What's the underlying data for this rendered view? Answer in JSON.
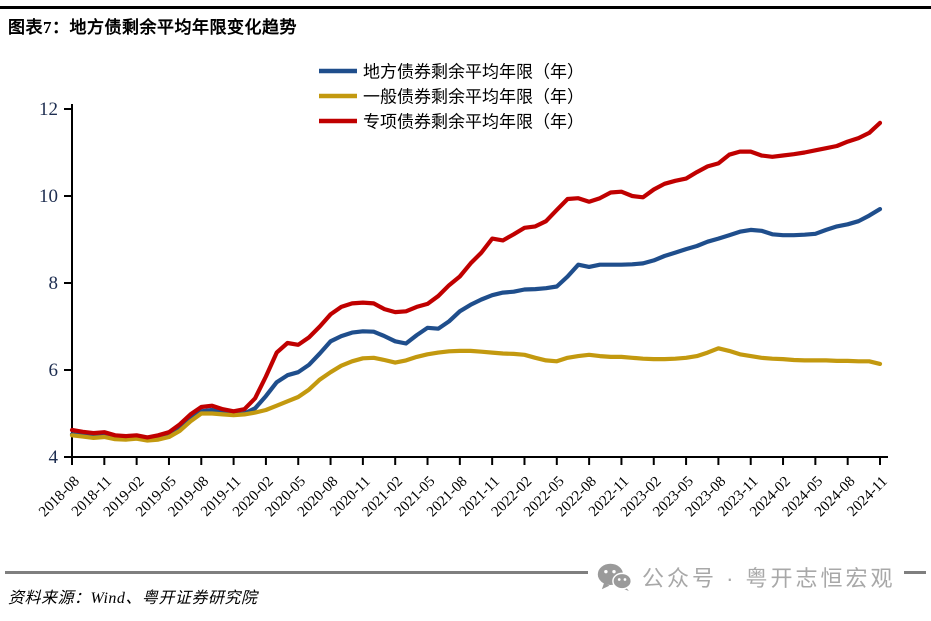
{
  "header": {
    "title": "图表7：地方债剩余平均年限变化趋势"
  },
  "footer": {
    "source": "资料来源：Wind、粤开证券研究院",
    "watermark": "公众号 · 粤开志恒宏观",
    "watermark_icon": "wechat-icon"
  },
  "colors": {
    "axis": "#000000",
    "y_tick_label": "#1d2d50",
    "x_tick_label": "#000000",
    "divider_gray": "#7f7f7f",
    "watermark_gray": "#a8a8a8"
  },
  "chart_data": {
    "type": "line",
    "title": "地方债剩余平均年限变化趋势",
    "xlabel": "",
    "ylabel": "",
    "ylim": [
      4,
      12
    ],
    "y_ticks": [
      4,
      6,
      8,
      10,
      12
    ],
    "grid": false,
    "legend_position": "top-center",
    "x_unit": "month",
    "x_start": "2018-08",
    "x_end": "2024-11",
    "x_tick_every_n_points": 3,
    "x_tick_labels": [
      "2018-08",
      "2018-11",
      "2019-02",
      "2019-05",
      "2019-08",
      "2019-11",
      "2020-02",
      "2020-05",
      "2020-08",
      "2020-11",
      "2021-02",
      "2021-05",
      "2021-08",
      "2021-11",
      "2022-02",
      "2022-05",
      "2022-08",
      "2022-11",
      "2023-02",
      "2023-05",
      "2023-08",
      "2023-11",
      "2024-02",
      "2024-05",
      "2024-08",
      "2024-11"
    ],
    "series": [
      {
        "name": "地方债券剩余平均年限（年）",
        "color": "#1F4E8C",
        "values": [
          4.52,
          4.5,
          4.47,
          4.5,
          4.45,
          4.45,
          4.47,
          4.42,
          4.45,
          4.52,
          4.68,
          4.88,
          5.05,
          5.08,
          5.02,
          4.97,
          5.0,
          5.12,
          5.4,
          5.72,
          5.88,
          5.95,
          6.12,
          6.38,
          6.66,
          6.78,
          6.86,
          6.89,
          6.88,
          6.78,
          6.66,
          6.61,
          6.8,
          6.97,
          6.95,
          7.12,
          7.35,
          7.5,
          7.62,
          7.72,
          7.78,
          7.8,
          7.85,
          7.86,
          7.88,
          7.92,
          8.15,
          8.42,
          8.37,
          8.42,
          8.42,
          8.42,
          8.43,
          8.45,
          8.52,
          8.62,
          8.7,
          8.78,
          8.85,
          8.95,
          9.02,
          9.1,
          9.18,
          9.22,
          9.2,
          9.12,
          9.1,
          9.1,
          9.11,
          9.13,
          9.22,
          9.3,
          9.35,
          9.42,
          9.55,
          9.7
        ]
      },
      {
        "name": "一般债券剩余平均年限（年）",
        "color": "#C3990F",
        "values": [
          4.5,
          4.47,
          4.44,
          4.46,
          4.41,
          4.4,
          4.42,
          4.38,
          4.4,
          4.46,
          4.6,
          4.82,
          5.0,
          5.0,
          4.98,
          4.96,
          4.98,
          5.02,
          5.08,
          5.18,
          5.28,
          5.38,
          5.55,
          5.78,
          5.95,
          6.1,
          6.2,
          6.27,
          6.28,
          6.23,
          6.17,
          6.22,
          6.3,
          6.36,
          6.4,
          6.43,
          6.44,
          6.44,
          6.42,
          6.4,
          6.38,
          6.37,
          6.35,
          6.28,
          6.22,
          6.2,
          6.28,
          6.32,
          6.35,
          6.32,
          6.3,
          6.3,
          6.28,
          6.26,
          6.25,
          6.25,
          6.26,
          6.28,
          6.32,
          6.4,
          6.5,
          6.44,
          6.36,
          6.32,
          6.28,
          6.26,
          6.25,
          6.23,
          6.22,
          6.22,
          6.22,
          6.21,
          6.21,
          6.2,
          6.2,
          6.14
        ]
      },
      {
        "name": "专项债券剩余平均年限（年）",
        "color": "#C00000",
        "values": [
          4.62,
          4.58,
          4.55,
          4.57,
          4.5,
          4.48,
          4.5,
          4.45,
          4.5,
          4.57,
          4.75,
          4.98,
          5.15,
          5.18,
          5.1,
          5.05,
          5.1,
          5.35,
          5.85,
          6.4,
          6.62,
          6.58,
          6.75,
          7.0,
          7.28,
          7.45,
          7.53,
          7.55,
          7.53,
          7.4,
          7.33,
          7.35,
          7.45,
          7.52,
          7.7,
          7.95,
          8.15,
          8.45,
          8.7,
          9.02,
          8.98,
          9.12,
          9.27,
          9.3,
          9.42,
          9.68,
          9.93,
          9.95,
          9.87,
          9.95,
          10.08,
          10.1,
          10.0,
          9.97,
          10.15,
          10.28,
          10.35,
          10.4,
          10.55,
          10.68,
          10.75,
          10.95,
          11.02,
          11.02,
          10.93,
          10.9,
          10.93,
          10.96,
          11.0,
          11.05,
          11.1,
          11.15,
          11.25,
          11.33,
          11.45,
          11.68
        ]
      }
    ]
  }
}
